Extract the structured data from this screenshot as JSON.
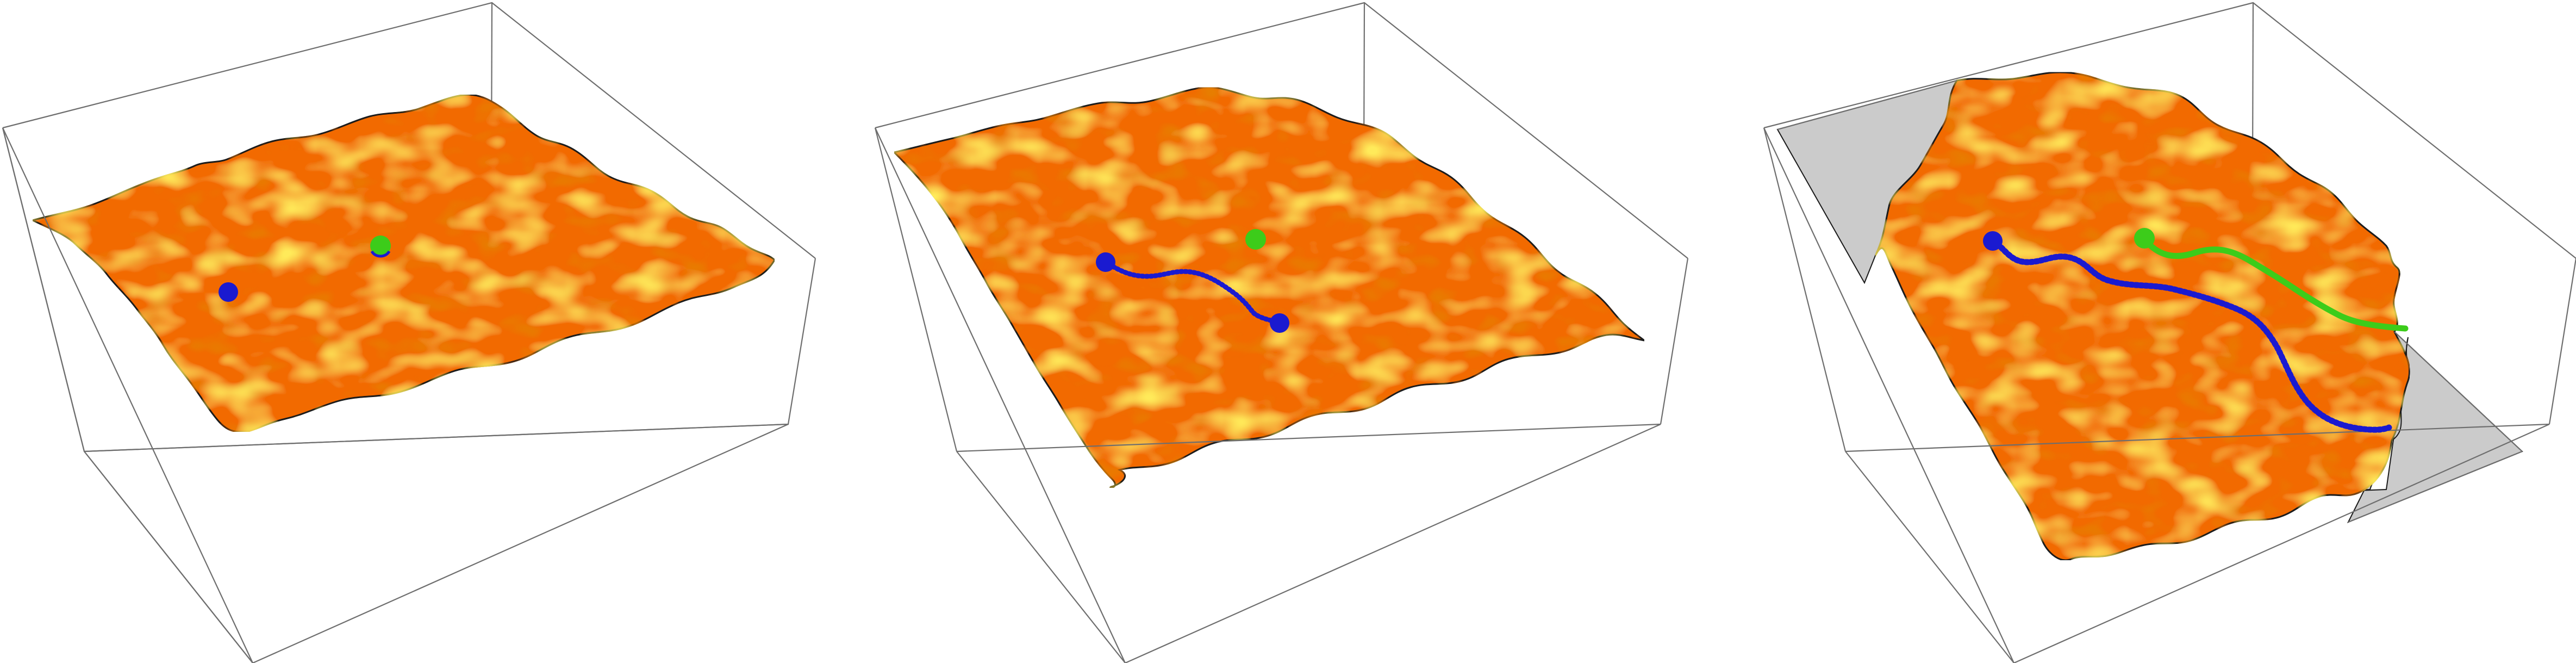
{
  "colors": {
    "background": "#ffffff",
    "box_edge": "#6e6e6e",
    "surface_base": "#f26a00",
    "surface_dark": "#d44a00",
    "surface_highlight": "#ffd21a",
    "surface_outline": "#1a1a1a",
    "blue_marker": "#1a1ad0",
    "green_marker": "#3ccc1a",
    "floor_gray": "#cbcbcb"
  },
  "panels": [
    {
      "id": "panel-1",
      "markers": [
        "blue-dot",
        "green-dot"
      ],
      "paths": []
    },
    {
      "id": "panel-2",
      "markers": [
        "blue-dot-start",
        "blue-dot-end",
        "green-dot"
      ],
      "paths": [
        "blue-path"
      ]
    },
    {
      "id": "panel-3",
      "markers": [
        "blue-dot",
        "green-dot"
      ],
      "paths": [
        "blue-path",
        "green-path"
      ],
      "exposed_floor": true
    }
  ]
}
